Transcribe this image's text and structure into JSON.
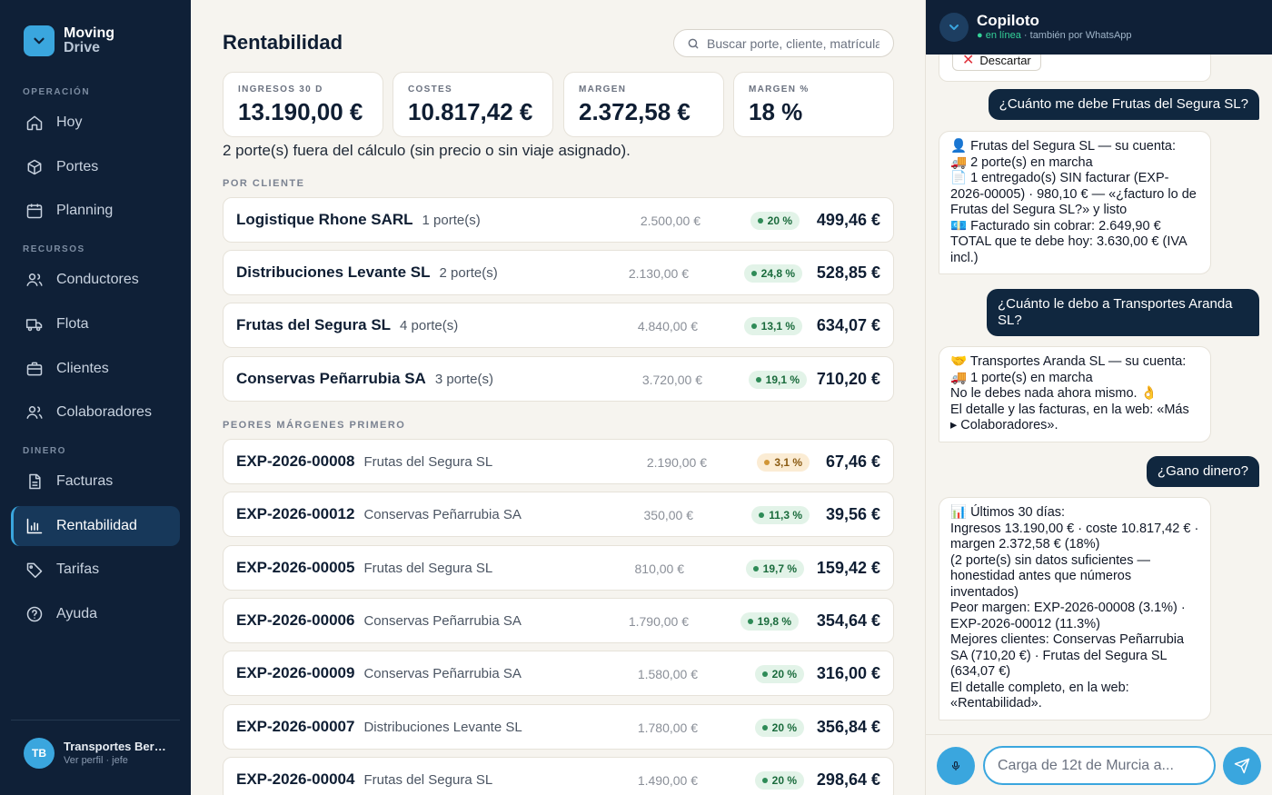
{
  "brand": {
    "line1": "Moving",
    "line2": "Drive"
  },
  "sidebar": {
    "sections": {
      "operacion": "OPERACIÓN",
      "recursos": "RECURSOS",
      "dinero": "DINERO"
    },
    "items": [
      {
        "label": "Hoy",
        "icon": "home-icon"
      },
      {
        "label": "Portes",
        "icon": "box-icon"
      },
      {
        "label": "Planning",
        "icon": "calendar-icon"
      },
      {
        "label": "Conductores",
        "icon": "users-icon"
      },
      {
        "label": "Flota",
        "icon": "truck-icon"
      },
      {
        "label": "Clientes",
        "icon": "briefcase-icon"
      },
      {
        "label": "Colaboradores",
        "icon": "users-icon"
      },
      {
        "label": "Facturas",
        "icon": "document-icon"
      },
      {
        "label": "Rentabilidad",
        "icon": "chart-icon",
        "active": true
      },
      {
        "label": "Tarifas",
        "icon": "tag-icon"
      },
      {
        "label": "Ayuda",
        "icon": "help-icon"
      }
    ],
    "user": {
      "initials": "TB",
      "name": "Transportes Bermejo",
      "sub": "Ver perfil · jefe"
    }
  },
  "main": {
    "title": "Rentabilidad",
    "search_placeholder": "Buscar porte, cliente, matrícula…",
    "kpis": [
      {
        "label": "INGRESOS 30 D",
        "value": "13.190,00 €"
      },
      {
        "label": "COSTES",
        "value": "10.817,42 €"
      },
      {
        "label": "MARGEN",
        "value": "2.372,58 €"
      },
      {
        "label": "MARGEN %",
        "value": "18 %"
      }
    ],
    "note": "2 porte(s) fuera del cálculo (sin precio o sin viaje asignado).",
    "by_client_label": "POR CLIENTE",
    "clients": [
      {
        "name": "Logistique Rhone SARL",
        "sub": "1 porte(s)",
        "amount": "2.500,00 €",
        "pct": "20 %",
        "value": "499,46 €",
        "warn": false
      },
      {
        "name": "Distribuciones Levante SL",
        "sub": "2 porte(s)",
        "amount": "2.130,00 €",
        "pct": "24,8 %",
        "value": "528,85 €",
        "warn": false
      },
      {
        "name": "Frutas del Segura SL",
        "sub": "4 porte(s)",
        "amount": "4.840,00 €",
        "pct": "13,1 %",
        "value": "634,07 €",
        "warn": false
      },
      {
        "name": "Conservas Peñarrubia SA",
        "sub": "3 porte(s)",
        "amount": "3.720,00 €",
        "pct": "19,1 %",
        "value": "710,20 €",
        "warn": false
      }
    ],
    "worst_label": "PEORES MÁRGENES PRIMERO",
    "shipments": [
      {
        "name": "EXP-2026-00008",
        "sub": "Frutas del Segura SL",
        "amount": "2.190,00 €",
        "pct": "3,1 %",
        "value": "67,46 €",
        "warn": true
      },
      {
        "name": "EXP-2026-00012",
        "sub": "Conservas Peñarrubia SA",
        "amount": "350,00 €",
        "pct": "11,3 %",
        "value": "39,56 €",
        "warn": false
      },
      {
        "name": "EXP-2026-00005",
        "sub": "Frutas del Segura SL",
        "amount": "810,00 €",
        "pct": "19,7 %",
        "value": "159,42 €",
        "warn": false
      },
      {
        "name": "EXP-2026-00006",
        "sub": "Conservas Peñarrubia SA",
        "amount": "1.790,00 €",
        "pct": "19,8 %",
        "value": "354,64 €",
        "warn": false
      },
      {
        "name": "EXP-2026-00009",
        "sub": "Conservas Peñarrubia SA",
        "amount": "1.580,00 €",
        "pct": "20 %",
        "value": "316,00 €",
        "warn": false
      },
      {
        "name": "EXP-2026-00007",
        "sub": "Distribuciones Levante SL",
        "amount": "1.780,00 €",
        "pct": "20 %",
        "value": "356,84 €",
        "warn": false
      },
      {
        "name": "EXP-2026-00004",
        "sub": "Frutas del Segura SL",
        "amount": "1.490,00 €",
        "pct": "20 %",
        "value": "298,64 €",
        "warn": false
      }
    ]
  },
  "copilot": {
    "title": "Copiloto",
    "status_online": "● en línea",
    "status_rest": " · también por WhatsApp",
    "discard_label": "Descartar",
    "messages": [
      {
        "from": "user",
        "text": "¿Cuánto me debe Frutas del Segura SL?"
      },
      {
        "from": "bot",
        "text": "👤 Frutas del Segura SL — su cuenta:\n🚚 2 porte(s) en marcha\n📄 1 entregado(s) SIN facturar (EXP-2026-00005) · 980,10 € — «¿facturo lo de Frutas del Segura SL?» y listo\n💶 Facturado sin cobrar: 2.649,90 €\nTOTAL que te debe hoy: 3.630,00 € (IVA incl.)"
      },
      {
        "from": "user",
        "text": "¿Cuánto le debo a Transportes Aranda SL?"
      },
      {
        "from": "bot",
        "text": "🤝 Transportes Aranda SL — su cuenta:\n🚚 1 porte(s) en marcha\nNo le debes nada ahora mismo. 👌\nEl detalle y las facturas, en la web: «Más ▸ Colaboradores»."
      },
      {
        "from": "user",
        "text": "¿Gano dinero?"
      },
      {
        "from": "bot",
        "text": "📊 Últimos 30 días:\nIngresos 13.190,00 € · coste 10.817,42 € · margen 2.372,58 € (18%)\n(2 porte(s) sin datos suficientes — honestidad antes que números inventados)\nPeor margen: EXP-2026-00008 (3.1%) · EXP-2026-00012 (11.3%)\nMejores clientes: Conservas Peñarrubia SA (710,20 €) · Frutas del Segura SL (634,07 €)\nEl detalle completo, en la web: «Rentabilidad»."
      }
    ],
    "input_placeholder": "Carga de 12t de Murcia a..."
  }
}
